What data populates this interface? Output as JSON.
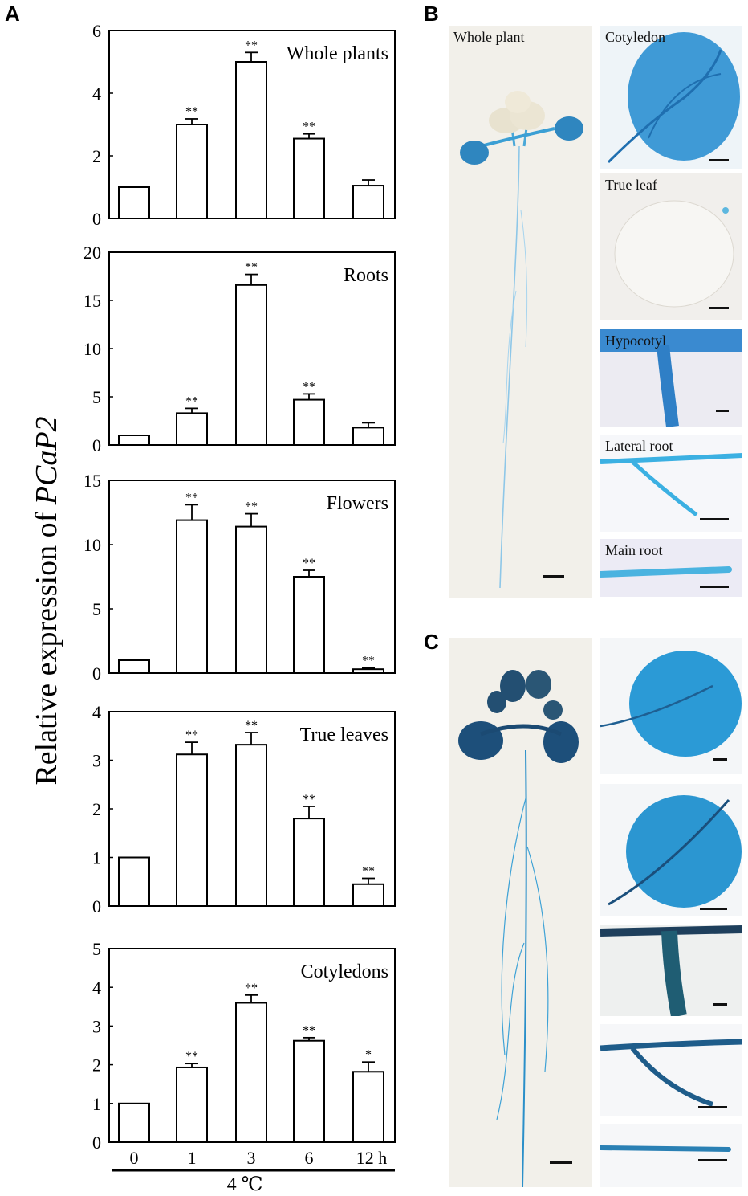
{
  "panels": {
    "a": "A",
    "b": "B",
    "c": "C"
  },
  "y_axis": {
    "prefix": "Relative expression of ",
    "gene": "PCaP2"
  },
  "x_axis": {
    "ticks": [
      "0",
      "1",
      "3",
      "6",
      "12 h"
    ],
    "treatment": "4 ℃"
  },
  "chart_data": [
    {
      "type": "bar",
      "title": "Whole plants",
      "categories": [
        "0",
        "1",
        "3",
        "6",
        "12 h"
      ],
      "values": [
        1.0,
        3.0,
        5.0,
        2.55,
        1.05
      ],
      "errors": [
        0,
        0.18,
        0.3,
        0.15,
        0.18
      ],
      "significance": [
        "",
        "**",
        "**",
        "**",
        ""
      ],
      "ylim": [
        0,
        6
      ],
      "yticks": [
        "0",
        "2",
        "4",
        "6"
      ]
    },
    {
      "type": "bar",
      "title": "Roots",
      "categories": [
        "0",
        "1",
        "3",
        "6",
        "12 h"
      ],
      "values": [
        1.0,
        3.3,
        16.6,
        4.7,
        1.8
      ],
      "errors": [
        0,
        0.5,
        1.1,
        0.6,
        0.5
      ],
      "significance": [
        "",
        "**",
        "**",
        "**",
        ""
      ],
      "ylim": [
        0,
        20
      ],
      "yticks": [
        "0",
        "5",
        "10",
        "15",
        "20"
      ]
    },
    {
      "type": "bar",
      "title": "Flowers",
      "categories": [
        "0",
        "1",
        "3",
        "6",
        "12 h"
      ],
      "values": [
        1.0,
        11.9,
        11.4,
        7.5,
        0.3
      ],
      "errors": [
        0,
        1.2,
        1.0,
        0.5,
        0.1
      ],
      "significance": [
        "",
        "**",
        "**",
        "**",
        "**"
      ],
      "ylim": [
        0,
        15
      ],
      "yticks": [
        "0",
        "5",
        "10",
        "15"
      ]
    },
    {
      "type": "bar",
      "title": "True leaves",
      "categories": [
        "0",
        "1",
        "3",
        "6",
        "12 h"
      ],
      "values": [
        1.0,
        3.12,
        3.32,
        1.8,
        0.45
      ],
      "errors": [
        0,
        0.25,
        0.25,
        0.25,
        0.12
      ],
      "significance": [
        "",
        "**",
        "**",
        "**",
        "**"
      ],
      "ylim": [
        0,
        4
      ],
      "yticks": [
        "0",
        "1",
        "2",
        "3",
        "4"
      ]
    },
    {
      "type": "bar",
      "title": "Cotyledons",
      "categories": [
        "0",
        "1",
        "3",
        "6",
        "12 h"
      ],
      "values": [
        1.0,
        1.93,
        3.6,
        2.62,
        1.82
      ],
      "errors": [
        0,
        0.1,
        0.2,
        0.08,
        0.25
      ],
      "significance": [
        "",
        "**",
        "**",
        "**",
        "*"
      ],
      "ylim": [
        0,
        5
      ],
      "yticks": [
        "0",
        "1",
        "2",
        "3",
        "4",
        "5"
      ]
    }
  ],
  "panel_b": {
    "whole": "Whole plant",
    "tissues": [
      "Cotyledon",
      "True leaf",
      "Hypocotyl",
      "Lateral root",
      "Main root"
    ]
  },
  "colors": {
    "bar_fill": "#ffffff",
    "stain_blue": "#2a9bd6",
    "stain_dark": "#17456b",
    "paper": "#f2f0ea"
  }
}
